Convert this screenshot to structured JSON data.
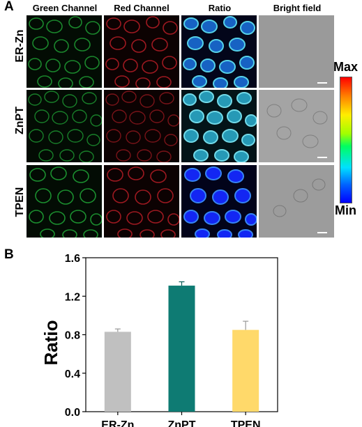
{
  "panel_a": {
    "letter": "A",
    "columns": [
      "Green Channel",
      "Red Channel",
      "Ratio",
      "Bright field"
    ],
    "rows": [
      "ER-Zn",
      "ZnPT",
      "TPEN"
    ],
    "colorbar": {
      "max_label": "Max",
      "min_label": "Min"
    },
    "colors": {
      "green": "#22b03a",
      "red": "#c21f28",
      "ratio_low": "#1428ff",
      "ratio_high": "#5fe8ff",
      "bright_field": "#9a9a9a"
    }
  },
  "panel_b": {
    "letter": "B"
  },
  "chart_data": {
    "type": "bar",
    "categories": [
      "ER-Zn",
      "ZnPT",
      "TPEN"
    ],
    "values": [
      0.83,
      1.31,
      0.85
    ],
    "errors": [
      0.03,
      0.04,
      0.09
    ],
    "colors": [
      "#c0c0c0",
      "#0e7b73",
      "#ffd96a"
    ],
    "ylabel": "Ratio",
    "xlabel": "",
    "ylim": [
      0.0,
      1.6
    ],
    "yticks": [
      "0.0",
      "0.4",
      "0.8",
      "1.2",
      "1.6"
    ],
    "ytick_values": [
      0.0,
      0.4,
      0.8,
      1.2,
      1.6
    ],
    "grid": false
  }
}
